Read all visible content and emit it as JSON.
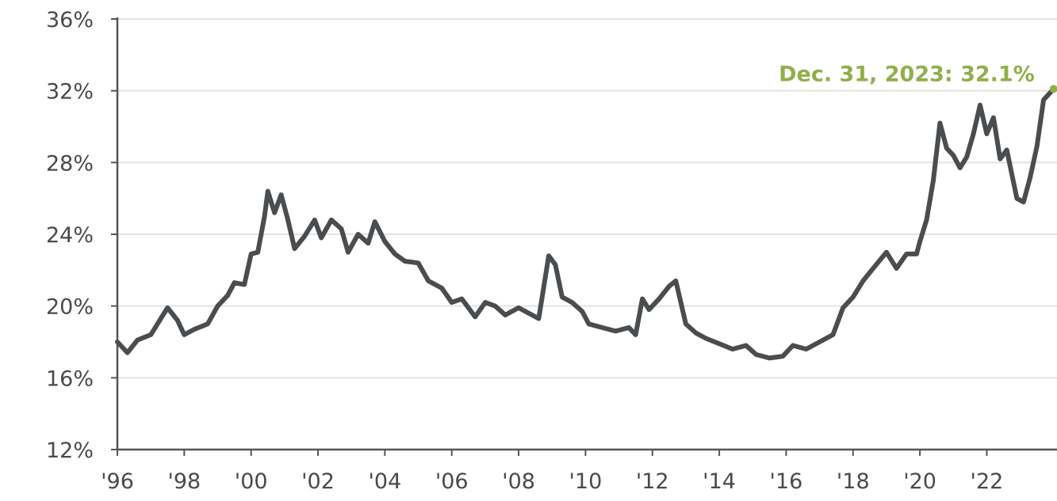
{
  "chart_data": {
    "type": "line",
    "title": "",
    "xlabel": "",
    "ylabel": "",
    "xlim": [
      1996.0,
      2024.1
    ],
    "ylim": [
      12,
      36
    ],
    "grid": "horizontal",
    "y_ticks": [
      {
        "value": 36,
        "label": "36%"
      },
      {
        "value": 32,
        "label": "32%"
      },
      {
        "value": 28,
        "label": "28%"
      },
      {
        "value": 24,
        "label": "24%"
      },
      {
        "value": 20,
        "label": "20%"
      },
      {
        "value": 16,
        "label": "16%"
      },
      {
        "value": 12,
        "label": "12%"
      }
    ],
    "x_ticks": [
      {
        "value": 1996,
        "label": "'96"
      },
      {
        "value": 1998,
        "label": "'98"
      },
      {
        "value": 2000,
        "label": "'00"
      },
      {
        "value": 2002,
        "label": "'02"
      },
      {
        "value": 2004,
        "label": "'04"
      },
      {
        "value": 2006,
        "label": "'06"
      },
      {
        "value": 2008,
        "label": "'08"
      },
      {
        "value": 2010,
        "label": "'10"
      },
      {
        "value": 2012,
        "label": "'12"
      },
      {
        "value": 2014,
        "label": "'14"
      },
      {
        "value": 2016,
        "label": "'16"
      },
      {
        "value": 2018,
        "label": "'18"
      },
      {
        "value": 2020,
        "label": "'20"
      },
      {
        "value": 2022,
        "label": "'22"
      }
    ],
    "series": [
      {
        "color": "#4a4d4f",
        "points": [
          [
            1996.0,
            18.0
          ],
          [
            1996.3,
            17.4
          ],
          [
            1996.6,
            18.1
          ],
          [
            1997.0,
            18.4
          ],
          [
            1997.3,
            19.3
          ],
          [
            1997.5,
            19.9
          ],
          [
            1997.8,
            19.2
          ],
          [
            1998.0,
            18.4
          ],
          [
            1998.3,
            18.7
          ],
          [
            1998.7,
            19.0
          ],
          [
            1999.0,
            20.0
          ],
          [
            1999.3,
            20.6
          ],
          [
            1999.5,
            21.3
          ],
          [
            1999.8,
            21.2
          ],
          [
            2000.0,
            22.9
          ],
          [
            2000.2,
            23.0
          ],
          [
            2000.4,
            25.0
          ],
          [
            2000.5,
            26.4
          ],
          [
            2000.7,
            25.2
          ],
          [
            2000.9,
            26.2
          ],
          [
            2001.1,
            24.8
          ],
          [
            2001.3,
            23.2
          ],
          [
            2001.6,
            23.9
          ],
          [
            2001.9,
            24.8
          ],
          [
            2002.1,
            23.8
          ],
          [
            2002.4,
            24.8
          ],
          [
            2002.7,
            24.3
          ],
          [
            2002.9,
            23.0
          ],
          [
            2003.2,
            24.0
          ],
          [
            2003.5,
            23.5
          ],
          [
            2003.7,
            24.7
          ],
          [
            2004.0,
            23.6
          ],
          [
            2004.3,
            22.9
          ],
          [
            2004.6,
            22.5
          ],
          [
            2005.0,
            22.4
          ],
          [
            2005.3,
            21.4
          ],
          [
            2005.7,
            21.0
          ],
          [
            2006.0,
            20.2
          ],
          [
            2006.3,
            20.4
          ],
          [
            2006.7,
            19.4
          ],
          [
            2007.0,
            20.2
          ],
          [
            2007.3,
            20.0
          ],
          [
            2007.6,
            19.5
          ],
          [
            2008.0,
            19.9
          ],
          [
            2008.3,
            19.6
          ],
          [
            2008.6,
            19.3
          ],
          [
            2008.9,
            22.8
          ],
          [
            2009.1,
            22.3
          ],
          [
            2009.3,
            20.5
          ],
          [
            2009.6,
            20.2
          ],
          [
            2009.9,
            19.7
          ],
          [
            2010.1,
            19.0
          ],
          [
            2010.5,
            18.8
          ],
          [
            2010.9,
            18.6
          ],
          [
            2011.3,
            18.8
          ],
          [
            2011.5,
            18.4
          ],
          [
            2011.7,
            20.4
          ],
          [
            2011.9,
            19.8
          ],
          [
            2012.2,
            20.4
          ],
          [
            2012.5,
            21.1
          ],
          [
            2012.7,
            21.4
          ],
          [
            2013.0,
            19.0
          ],
          [
            2013.3,
            18.5
          ],
          [
            2013.6,
            18.2
          ],
          [
            2014.0,
            17.9
          ],
          [
            2014.4,
            17.6
          ],
          [
            2014.8,
            17.8
          ],
          [
            2015.1,
            17.3
          ],
          [
            2015.5,
            17.1
          ],
          [
            2015.9,
            17.2
          ],
          [
            2016.2,
            17.8
          ],
          [
            2016.6,
            17.6
          ],
          [
            2017.0,
            18.0
          ],
          [
            2017.4,
            18.4
          ],
          [
            2017.7,
            19.9
          ],
          [
            2018.0,
            20.5
          ],
          [
            2018.3,
            21.4
          ],
          [
            2018.6,
            22.1
          ],
          [
            2019.0,
            23.0
          ],
          [
            2019.3,
            22.1
          ],
          [
            2019.6,
            22.9
          ],
          [
            2019.9,
            22.9
          ],
          [
            2020.0,
            23.6
          ],
          [
            2020.2,
            24.8
          ],
          [
            2020.4,
            27.0
          ],
          [
            2020.6,
            30.2
          ],
          [
            2020.8,
            28.8
          ],
          [
            2021.0,
            28.4
          ],
          [
            2021.2,
            27.7
          ],
          [
            2021.4,
            28.3
          ],
          [
            2021.6,
            29.6
          ],
          [
            2021.8,
            31.2
          ],
          [
            2022.0,
            29.6
          ],
          [
            2022.2,
            30.5
          ],
          [
            2022.4,
            28.2
          ],
          [
            2022.6,
            28.7
          ],
          [
            2022.9,
            26.0
          ],
          [
            2023.1,
            25.8
          ],
          [
            2023.3,
            27.2
          ],
          [
            2023.5,
            28.9
          ],
          [
            2023.7,
            31.5
          ],
          [
            2023.85,
            31.8
          ],
          [
            2024.0,
            32.1
          ]
        ]
      }
    ],
    "annotations": [
      {
        "text": "Dec. 31, 2023: 32.1%",
        "x": 2024.0,
        "y": 32.1,
        "color": "#8fb04a"
      }
    ]
  }
}
